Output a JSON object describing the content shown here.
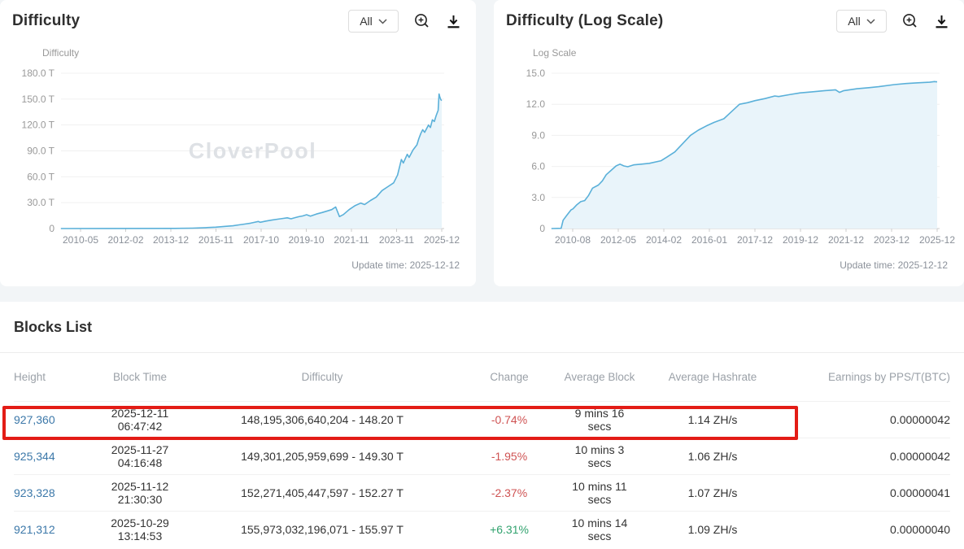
{
  "colors": {
    "line_blue": "#5ab0d9",
    "area_blue": "#e9f4fa",
    "link_blue": "#3c78a9",
    "change_red": "#cf5353",
    "change_green": "#31a26e",
    "annotation_red": "#e31c16",
    "watermark_gray": "#dee1e5"
  },
  "chart_data": [
    {
      "type": "area",
      "title": "Difficulty",
      "filter_value": "All",
      "ylabel": "Difficulty",
      "watermark": "CloverPool",
      "update_time": "Update time: 2025-12-12",
      "ylim": [
        0,
        180
      ],
      "y_unit": "T",
      "ytick_labels": [
        "180.0 T",
        "150.0 T",
        "120.0 T",
        "90.0 T",
        "60.0 T",
        "30.0 T",
        "0"
      ],
      "xtick_labels": [
        "2010-05",
        "2012-02",
        "2013-12",
        "2015-11",
        "2017-10",
        "2019-10",
        "2021-11",
        "2023-11",
        "2025-12"
      ],
      "x_domain": [
        2009.55,
        2026.05
      ],
      "line_color": "#5ab0d9",
      "area_color": "#e9f4fa",
      "points": [
        [
          "2009-07",
          0
        ],
        [
          "2014-06",
          0.15
        ],
        [
          "2015-03",
          0.5
        ],
        [
          "2015-10",
          1.0
        ],
        [
          "2016-03",
          1.6
        ],
        [
          "2016-08",
          2.5
        ],
        [
          "2016-12",
          3.2
        ],
        [
          "2017-03",
          4.2
        ],
        [
          "2017-06",
          5.2
        ],
        [
          "2017-09",
          6.2
        ],
        [
          "2017-11",
          7.2
        ],
        [
          "2018-01",
          8.2
        ],
        [
          "2018-02",
          7.3
        ],
        [
          "2018-05",
          8.7
        ],
        [
          "2018-08",
          9.8
        ],
        [
          "2018-11",
          10.8
        ],
        [
          "2019-02",
          11.8
        ],
        [
          "2019-04",
          12.4
        ],
        [
          "2019-06",
          11.3
        ],
        [
          "2019-08",
          12.6
        ],
        [
          "2019-10",
          13.8
        ],
        [
          "2019-12",
          14.6
        ],
        [
          "2020-02",
          16.0
        ],
        [
          "2020-04",
          14.4
        ],
        [
          "2020-07",
          16.8
        ],
        [
          "2020-10",
          18.6
        ],
        [
          "2021-01",
          20.5
        ],
        [
          "2021-03",
          22.0
        ],
        [
          "2021-05",
          25.0
        ],
        [
          "2021-07",
          13.9
        ],
        [
          "2021-09",
          16.2
        ],
        [
          "2021-12",
          22.0
        ],
        [
          "2022-03",
          26.5
        ],
        [
          "2022-06",
          29.5
        ],
        [
          "2022-08",
          27.8
        ],
        [
          "2022-11",
          32.5
        ],
        [
          "2023-02",
          36.5
        ],
        [
          "2023-05",
          44.0
        ],
        [
          "2023-08",
          48.5
        ],
        [
          "2023-11",
          53.0
        ],
        [
          "2024-01",
          62.0
        ],
        [
          "2024-03",
          80.0
        ],
        [
          "2024-04",
          76.0
        ],
        [
          "2024-06",
          86.0
        ],
        [
          "2024-07",
          82.5
        ],
        [
          "2024-09",
          91.0
        ],
        [
          "2024-11",
          97.0
        ],
        [
          "2024-12",
          104.0
        ],
        [
          "2025-01",
          110.0
        ],
        [
          "2025-02",
          114.5
        ],
        [
          "2025-03",
          111.5
        ],
        [
          "2025-05",
          120.0
        ],
        [
          "2025-06",
          117.0
        ],
        [
          "2025-07",
          126.0
        ],
        [
          "2025-08",
          124.0
        ],
        [
          "2025-09",
          131.0
        ],
        [
          "2025-10",
          137.0
        ],
        [
          "2025-10-29",
          155.97
        ],
        [
          "2025-11-12",
          152.27
        ],
        [
          "2025-11-27",
          149.3
        ],
        [
          "2025-12-11",
          148.2
        ]
      ]
    },
    {
      "type": "area",
      "title": "Difficulty (Log Scale)",
      "filter_value": "All",
      "ylabel": "Log Scale",
      "watermark": "CloverPool",
      "update_time": "Update time: 2025-12-12",
      "ylim": [
        0,
        15
      ],
      "y_unit": "log10",
      "ytick_labels": [
        "15.0",
        "12.0",
        "9.0",
        "6.0",
        "3.0",
        "0"
      ],
      "xtick_labels": [
        "2010-08",
        "2012-05",
        "2014-02",
        "2016-01",
        "2017-12",
        "2019-12",
        "2021-12",
        "2023-12",
        "2025-12"
      ],
      "x_domain": [
        2009.55,
        2026.05
      ],
      "line_color": "#5ab0d9",
      "area_color": "#e9f4fa",
      "points": [
        [
          "2009-07",
          0
        ],
        [
          "2009-12",
          0.02
        ],
        [
          "2010-01",
          0.8
        ],
        [
          "2010-03",
          1.3
        ],
        [
          "2010-05",
          1.8
        ],
        [
          "2010-06",
          1.9
        ],
        [
          "2010-08",
          2.3
        ],
        [
          "2010-10",
          2.6
        ],
        [
          "2010-12",
          2.7
        ],
        [
          "2011-02",
          3.2
        ],
        [
          "2011-04",
          3.9
        ],
        [
          "2011-07",
          4.2
        ],
        [
          "2011-09",
          4.6
        ],
        [
          "2011-11",
          5.2
        ],
        [
          "2012-02",
          5.7
        ],
        [
          "2012-04",
          6.05
        ],
        [
          "2012-06",
          6.22
        ],
        [
          "2012-08",
          6.05
        ],
        [
          "2012-10",
          5.97
        ],
        [
          "2013-01",
          6.15
        ],
        [
          "2013-05",
          6.22
        ],
        [
          "2013-09",
          6.3
        ],
        [
          "2014-03",
          6.55
        ],
        [
          "2014-06",
          6.9
        ],
        [
          "2014-10",
          7.4
        ],
        [
          "2015-02",
          8.2
        ],
        [
          "2015-06",
          9.0
        ],
        [
          "2015-10",
          9.5
        ],
        [
          "2016-02",
          9.9
        ],
        [
          "2016-06",
          10.25
        ],
        [
          "2016-11",
          10.6
        ],
        [
          "2017-03",
          11.3
        ],
        [
          "2017-07",
          12.0
        ],
        [
          "2017-11",
          12.15
        ],
        [
          "2018-03",
          12.35
        ],
        [
          "2018-08",
          12.55
        ],
        [
          "2019-01",
          12.8
        ],
        [
          "2019-03",
          12.75
        ],
        [
          "2019-09",
          12.95
        ],
        [
          "2020-02",
          13.1
        ],
        [
          "2020-08",
          13.2
        ],
        [
          "2021-02",
          13.3
        ],
        [
          "2021-08",
          13.4
        ],
        [
          "2021-10",
          13.15
        ],
        [
          "2021-12",
          13.3
        ],
        [
          "2022-07",
          13.5
        ],
        [
          "2023-01",
          13.6
        ],
        [
          "2023-06",
          13.7
        ],
        [
          "2024-02",
          13.9
        ],
        [
          "2024-08",
          14.0
        ],
        [
          "2025-02",
          14.07
        ],
        [
          "2025-08",
          14.13
        ],
        [
          "2025-10-29",
          14.19
        ],
        [
          "2025-11-27",
          14.17
        ],
        [
          "2025-12-11",
          14.17
        ]
      ]
    }
  ],
  "blocks_table": {
    "title": "Blocks List",
    "columns": [
      {
        "label": "Height",
        "key": "height",
        "align": "left"
      },
      {
        "label": "Block Time",
        "key": "block_time",
        "align": "center"
      },
      {
        "label": "Difficulty",
        "key": "difficulty",
        "align": "center"
      },
      {
        "label": "Change",
        "key": "change",
        "align": "center"
      },
      {
        "label": "Average Block",
        "key": "avg_block",
        "align": "center"
      },
      {
        "label": "Average Hashrate",
        "key": "avg_hashrate",
        "align": "center"
      },
      {
        "label": "Earnings by PPS/T(BTC)",
        "key": "earnings",
        "align": "right"
      }
    ],
    "rows": [
      {
        "height": "927,360",
        "block_time": "2025-12-11 06:47:42",
        "difficulty": "148,195,306,640,204 - 148.20 T",
        "change": "-0.74%",
        "change_color": "red",
        "avg_block": "9 mins 16 secs",
        "avg_hashrate": "1.14 ZH/s",
        "earnings": "0.00000042"
      },
      {
        "height": "925,344",
        "block_time": "2025-11-27 04:16:48",
        "difficulty": "149,301,205,959,699 - 149.30 T",
        "change": "-1.95%",
        "change_color": "red",
        "avg_block": "10 mins 3 secs",
        "avg_hashrate": "1.06 ZH/s",
        "earnings": "0.00000042"
      },
      {
        "height": "923,328",
        "block_time": "2025-11-12 21:30:30",
        "difficulty": "152,271,405,447,597 - 152.27 T",
        "change": "-2.37%",
        "change_color": "red",
        "avg_block": "10 mins 11 secs",
        "avg_hashrate": "1.07 ZH/s",
        "earnings": "0.00000041"
      },
      {
        "height": "921,312",
        "block_time": "2025-10-29 13:14:53",
        "difficulty": "155,973,032,196,071 - 155.97 T",
        "change": "+6.31%",
        "change_color": "green",
        "avg_block": "10 mins 14 secs",
        "avg_hashrate": "1.09 ZH/s",
        "earnings": "0.00000040"
      }
    ]
  }
}
